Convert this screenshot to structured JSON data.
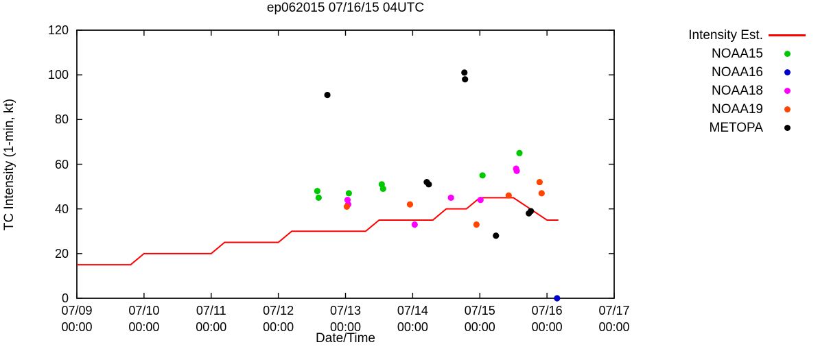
{
  "title": "ep062015 07/16/15 04UTC",
  "legend": {
    "entries": [
      {
        "label": "Intensity Est.",
        "marker": "line",
        "color": "#ff0000"
      },
      {
        "label": "NOAA15",
        "marker": "dot",
        "color": "#00c800"
      },
      {
        "label": "NOAA16",
        "marker": "dot",
        "color": "#0000cd"
      },
      {
        "label": "NOAA18",
        "marker": "dot",
        "color": "#ff00ff"
      },
      {
        "label": "NOAA19",
        "marker": "dot",
        "color": "#ff4500"
      },
      {
        "label": "METOPA",
        "marker": "dot",
        "color": "#000000"
      }
    ]
  },
  "chart_data": {
    "type": "scatter",
    "title": "ep062015 07/16/15 04UTC",
    "xlabel": "Date/Time",
    "ylabel": "TC Intensity (1-min, kt)",
    "x_unit": "days since 07/09 00:00",
    "xlim": [
      0,
      8
    ],
    "ylim": [
      0,
      120
    ],
    "ytick_step": 20,
    "grid": "off",
    "legend_position": "outside-right-top",
    "x_ticks": [
      {
        "t": 0,
        "date": "07/09",
        "time": "00:00"
      },
      {
        "t": 1,
        "date": "07/10",
        "time": "00:00"
      },
      {
        "t": 2,
        "date": "07/11",
        "time": "00:00"
      },
      {
        "t": 3,
        "date": "07/12",
        "time": "00:00"
      },
      {
        "t": 4,
        "date": "07/13",
        "time": "00:00"
      },
      {
        "t": 5,
        "date": "07/14",
        "time": "00:00"
      },
      {
        "t": 6,
        "date": "07/15",
        "time": "00:00"
      },
      {
        "t": 7,
        "date": "07/16",
        "time": "00:00"
      },
      {
        "t": 8,
        "date": "07/17",
        "time": "00:00"
      }
    ],
    "intensity_est_line": {
      "name": "Intensity Est.",
      "color": "#ff0000",
      "points_t_kt": [
        [
          0,
          15
        ],
        [
          0.8,
          15
        ],
        [
          1.0,
          20
        ],
        [
          2.0,
          20
        ],
        [
          2.2,
          25
        ],
        [
          3.0,
          25
        ],
        [
          3.2,
          30
        ],
        [
          4.3,
          30
        ],
        [
          4.5,
          35
        ],
        [
          5.3,
          35
        ],
        [
          5.5,
          40
        ],
        [
          5.8,
          40
        ],
        [
          6.0,
          45
        ],
        [
          6.5,
          45
        ],
        [
          7.0,
          35
        ],
        [
          7.17,
          35
        ]
      ]
    },
    "series": [
      {
        "name": "NOAA15",
        "color": "#00c800",
        "points_t_kt": [
          [
            3.58,
            48
          ],
          [
            3.6,
            45
          ],
          [
            4.05,
            47
          ],
          [
            4.54,
            51
          ],
          [
            4.56,
            49
          ],
          [
            6.04,
            55
          ],
          [
            6.59,
            65
          ]
        ]
      },
      {
        "name": "NOAA16",
        "color": "#0000cd",
        "points_t_kt": [
          [
            7.15,
            0
          ]
        ]
      },
      {
        "name": "NOAA18",
        "color": "#ff00ff",
        "points_t_kt": [
          [
            4.03,
            44
          ],
          [
            4.04,
            42
          ],
          [
            5.03,
            33
          ],
          [
            5.57,
            45
          ],
          [
            6.01,
            44
          ],
          [
            6.54,
            58
          ],
          [
            6.55,
            57
          ]
        ]
      },
      {
        "name": "NOAA19",
        "color": "#ff4500",
        "points_t_kt": [
          [
            4.02,
            41
          ],
          [
            4.96,
            42
          ],
          [
            5.95,
            33
          ],
          [
            6.43,
            46
          ],
          [
            6.89,
            52
          ],
          [
            6.92,
            47
          ]
        ]
      },
      {
        "name": "METOPA",
        "color": "#000000",
        "points_t_kt": [
          [
            3.73,
            91
          ],
          [
            5.21,
            52
          ],
          [
            5.24,
            51
          ],
          [
            5.77,
            101
          ],
          [
            5.78,
            98
          ],
          [
            6.24,
            28
          ],
          [
            6.73,
            38
          ],
          [
            6.76,
            39
          ]
        ]
      }
    ]
  }
}
